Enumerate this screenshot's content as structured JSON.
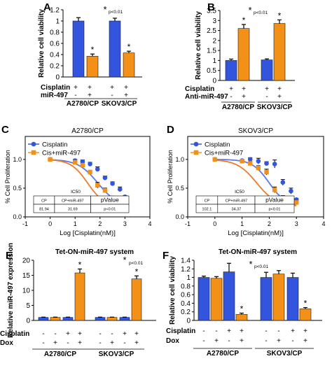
{
  "colors": {
    "blue": "#3355dd",
    "orange": "#f39018",
    "curve_blue": "#5a78e8",
    "curve_orange": "#f07a2a"
  },
  "panels": {
    "a": {
      "letter": "A"
    },
    "b": {
      "letter": "B"
    },
    "c": {
      "letter": "C"
    },
    "d": {
      "letter": "D"
    },
    "e": {
      "letter": "E"
    },
    "f": {
      "letter": "F"
    }
  },
  "chart_data": [
    {
      "id": "A",
      "type": "bar",
      "ylabel": "Relative cell viability",
      "ylim": [
        0,
        1.2
      ],
      "yticks": [
        "0",
        "0.2",
        "0.4",
        "0.6",
        "0.8",
        "1",
        "1.2"
      ],
      "groups": [
        "A2780/CP",
        "SKOV3/CP"
      ],
      "row_labels": [
        "Cisplatin",
        "miR-497"
      ],
      "row_signs": [
        [
          "+",
          "+",
          "+",
          "+"
        ],
        [
          "-",
          "+",
          "-",
          "+"
        ]
      ],
      "values": [
        1.0,
        0.37,
        1.0,
        0.43
      ],
      "errors": [
        0.06,
        0.04,
        0.05,
        0.03
      ],
      "colors": [
        "blue",
        "orange",
        "blue",
        "orange"
      ],
      "bar_marks": [
        "",
        "*",
        "",
        "*"
      ],
      "annotation": "p<0.01"
    },
    {
      "id": "B",
      "type": "bar",
      "ylabel": "Relative cell viability",
      "ylim": [
        0,
        3.5
      ],
      "yticks": [
        "0",
        "0.5",
        "1",
        "1.5",
        "2",
        "2.5",
        "3",
        "3.5"
      ],
      "groups": [
        "A2780/CP",
        "SKOV3/CP"
      ],
      "row_labels": [
        "Cisplatin",
        "Anti-miR-497"
      ],
      "row_signs": [
        [
          "+",
          "+",
          "+",
          "+"
        ],
        [
          "-",
          "+",
          "-",
          "+"
        ]
      ],
      "values": [
        1.0,
        2.6,
        1.03,
        2.85
      ],
      "errors": [
        0.07,
        0.2,
        0.05,
        0.18
      ],
      "colors": [
        "blue",
        "orange",
        "blue",
        "orange"
      ],
      "bar_marks": [
        "",
        "*",
        "",
        "*"
      ],
      "annotation": "p<0.01"
    },
    {
      "id": "C",
      "type": "line",
      "title": "A2780/CP",
      "xlabel": "Log [Cisplatin(nM)]",
      "ylabel": "% Cell Proliferation",
      "xlim": [
        -1,
        4
      ],
      "ylim": [
        0,
        1.4
      ],
      "xticks": [
        "-1",
        "0",
        "1",
        "2",
        "3",
        "4"
      ],
      "yticks": [
        "0.0",
        "0.5",
        "1.0"
      ],
      "series": [
        {
          "name": "Cisplatin",
          "color": "blue",
          "x": [
            0,
            1,
            1.3,
            1.6,
            1.9,
            2.2,
            2.5,
            2.8,
            3
          ],
          "y": [
            1.0,
            0.98,
            0.96,
            0.92,
            0.83,
            0.68,
            0.58,
            0.48,
            0.35
          ],
          "err": [
            0.02,
            0.02,
            0.03,
            0.03,
            0.04,
            0.03,
            0.03,
            0.04,
            0.02
          ]
        },
        {
          "name": "Cis+miR-497",
          "color": "orange",
          "x": [
            0,
            1,
            1.3,
            1.6,
            1.9,
            2.2,
            2.5,
            2.8,
            3
          ],
          "y": [
            1.0,
            0.95,
            0.9,
            0.78,
            0.55,
            0.46,
            0.33,
            0.22,
            0.22
          ],
          "err": [
            0.02,
            0.02,
            0.02,
            0.03,
            0.05,
            0.04,
            0.03,
            0.02,
            0.02
          ]
        }
      ],
      "ic50_table": {
        "title": "IC50",
        "headers": [
          "CP",
          "CP+miR-497",
          "pValue"
        ],
        "values": [
          "81.94",
          "31.69",
          "p<0.01"
        ]
      }
    },
    {
      "id": "D",
      "type": "line",
      "title": "SKOV3/CP",
      "xlabel": "Log [Cisplatin(nM)]",
      "ylabel": "% Cell Proliferation",
      "xlim": [
        -1,
        4
      ],
      "ylim": [
        0,
        1.4
      ],
      "xticks": [
        "-1",
        "0",
        "1",
        "2",
        "3",
        "4"
      ],
      "yticks": [
        "0.0",
        "0.5",
        "1.0"
      ],
      "series": [
        {
          "name": "Cisplatin",
          "color": "blue",
          "x": [
            0,
            1,
            1.3,
            1.6,
            1.9,
            2.2,
            2.5,
            2.8,
            3
          ],
          "y": [
            1.0,
            0.98,
            1.0,
            0.97,
            0.93,
            0.92,
            0.6,
            0.45,
            0.3
          ],
          "err": [
            0.02,
            0.02,
            0.03,
            0.05,
            0.03,
            0.07,
            0.05,
            0.05,
            0.02
          ]
        },
        {
          "name": "Cis+miR-497",
          "color": "orange",
          "x": [
            0,
            1,
            1.3,
            1.6,
            1.9,
            2.2,
            2.5,
            2.8,
            3
          ],
          "y": [
            1.0,
            0.97,
            0.93,
            0.85,
            0.78,
            0.47,
            0.33,
            0.25,
            0.25
          ],
          "err": [
            0.02,
            0.02,
            0.03,
            0.04,
            0.05,
            0.05,
            0.04,
            0.03,
            0.02
          ]
        }
      ],
      "ic50_table": {
        "title": "IC50",
        "headers": [
          "CP",
          "CP+miR-497",
          "pValue"
        ],
        "values": [
          "102.1",
          "34.37",
          "p<0.01"
        ]
      }
    },
    {
      "id": "E",
      "type": "bar",
      "title": "Tet-ON-miR-497 system",
      "ylabel": "Relative miR-497 expression",
      "ylim": [
        0,
        20
      ],
      "yticks": [
        "0",
        "5",
        "10",
        "15",
        "20"
      ],
      "groups": [
        "A2780/CP",
        "SKOV3/CP"
      ],
      "row_labels": [
        "Cisplatin",
        "Dox"
      ],
      "row_signs": [
        [
          "-",
          "-",
          "+",
          "+",
          "-",
          "-",
          "+",
          "+"
        ],
        [
          "-",
          "+",
          "-",
          "+",
          "-",
          "+",
          "-",
          "+"
        ]
      ],
      "values": [
        1.0,
        1.0,
        1.0,
        15.8,
        1.0,
        1.0,
        1.0,
        13.8
      ],
      "errors": [
        0.1,
        0.1,
        0.1,
        1.3,
        0.1,
        0.1,
        0.1,
        1.0
      ],
      "colors": [
        "blue",
        "orange",
        "blue",
        "orange",
        "blue",
        "orange",
        "blue",
        "orange"
      ],
      "bar_marks": [
        "",
        "",
        "",
        "*",
        "",
        "",
        "",
        "*"
      ],
      "annotation": "p<0.01"
    },
    {
      "id": "F",
      "type": "bar",
      "title": "Tet-ON-miR-497 system",
      "ylabel": "Relative cell viability",
      "ylim": [
        0,
        1.4
      ],
      "yticks": [
        "0",
        "0.2",
        "0.4",
        "0.6",
        "0.8",
        "1",
        "1.2",
        "1.4"
      ],
      "groups": [
        "A2780/CP",
        "SKOV3/CP"
      ],
      "row_labels": [
        "Cisplatin",
        "Dox"
      ],
      "row_signs": [
        [
          "-",
          "-",
          "+",
          "+",
          "-",
          "-",
          "+",
          "+"
        ],
        [
          "-",
          "+",
          "-",
          "+",
          "-",
          "+",
          "-",
          "+"
        ]
      ],
      "values": [
        1.0,
        0.98,
        1.13,
        0.14,
        1.0,
        1.08,
        1.0,
        0.27
      ],
      "errors": [
        0.03,
        0.04,
        0.2,
        0.03,
        0.12,
        0.08,
        0.1,
        0.03
      ],
      "colors": [
        "blue",
        "orange",
        "blue",
        "orange",
        "blue",
        "orange",
        "blue",
        "orange"
      ],
      "bar_marks": [
        "",
        "",
        "",
        "*",
        "",
        "",
        "",
        "*"
      ],
      "annotation": "p<0.01"
    }
  ]
}
